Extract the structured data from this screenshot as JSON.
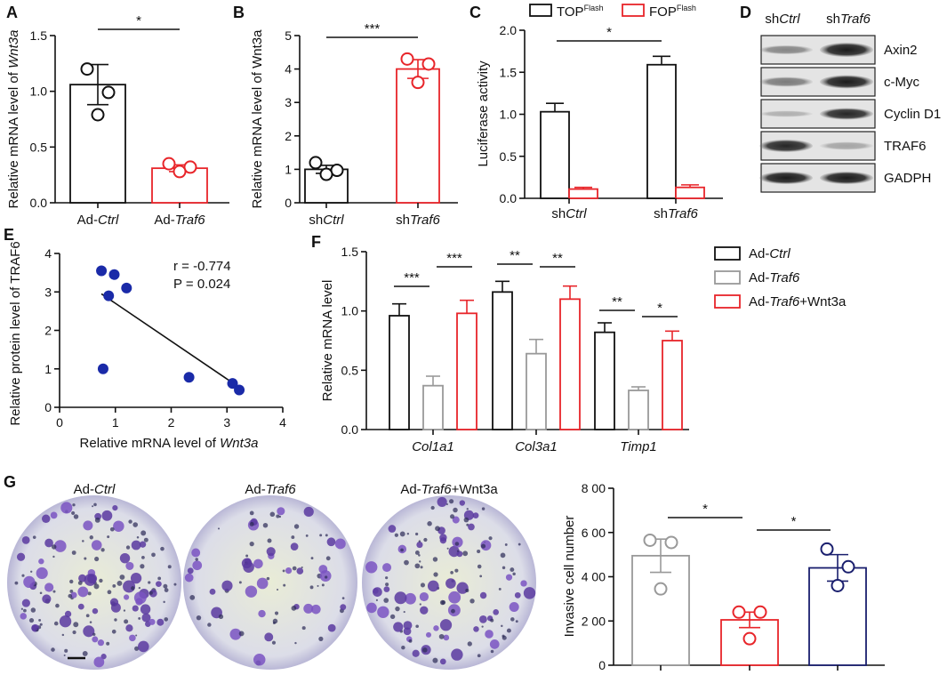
{
  "colors": {
    "black": "#111111",
    "red": "#e8252a",
    "gray": "#999999",
    "navy": "#1a1f6e",
    "scatter": "#1a2aa8"
  },
  "chart_data": [
    {
      "panel": "A",
      "type": "bar",
      "ylabel_parts": [
        "Relative mRNA level of ",
        "Wnt3a"
      ],
      "ylim": [
        0,
        1.5
      ],
      "yticks": [
        "0.0",
        "0.5",
        "1.0",
        "1.5"
      ],
      "categories": [
        [
          "Ad-",
          "Ctrl"
        ],
        [
          "Ad-",
          "Traf6"
        ]
      ],
      "values": [
        1.06,
        0.31
      ],
      "errors": [
        0.18,
        0.03
      ],
      "points": [
        [
          1.2,
          0.99,
          0.79
        ],
        [
          0.35,
          0.32,
          0.28
        ]
      ],
      "colors": [
        "#111111",
        "#e8252a"
      ],
      "significance": [
        {
          "from": 0,
          "to": 1,
          "label": "*"
        }
      ]
    },
    {
      "panel": "B",
      "type": "bar",
      "ylabel": "Relative mRNA level of Wnt3a",
      "ylim": [
        0,
        5
      ],
      "yticks": [
        "0",
        "1",
        "2",
        "3",
        "4",
        "5"
      ],
      "categories": [
        [
          "sh",
          "Ctrl"
        ],
        [
          "sh",
          "Traf6"
        ]
      ],
      "values": [
        1.0,
        4.0
      ],
      "errors": [
        0.12,
        0.28
      ],
      "points": [
        [
          1.2,
          0.97,
          0.85
        ],
        [
          4.3,
          4.15,
          3.6
        ]
      ],
      "colors": [
        "#111111",
        "#e8252a"
      ],
      "significance": [
        {
          "from": 0,
          "to": 1,
          "label": "***"
        }
      ]
    },
    {
      "panel": "C",
      "type": "bar",
      "ylabel": "Luciferase activity",
      "ylim": [
        0,
        2.0
      ],
      "yticks": [
        "0.0",
        "0.5",
        "1.0",
        "1.5",
        "2.0"
      ],
      "categories": [
        [
          "sh",
          "Ctrl"
        ],
        [
          "sh",
          "Traf6"
        ]
      ],
      "series": [
        {
          "name": "TOP",
          "sup": "Flash",
          "values": [
            1.03,
            1.59
          ],
          "errors": [
            0.1,
            0.1
          ],
          "color": "#111111"
        },
        {
          "name": "FOP",
          "sup": "Flash",
          "values": [
            0.11,
            0.13
          ],
          "errors": [
            0.02,
            0.03
          ],
          "color": "#e8252a"
        }
      ],
      "significance": [
        {
          "label": "*"
        }
      ]
    },
    {
      "panel": "E",
      "type": "scatter",
      "xlabel_parts": [
        "Relative mRNA level of ",
        "Wnt3a"
      ],
      "ylabel": "Relative protein level of TRAF6",
      "xlim": [
        0,
        4
      ],
      "ylim": [
        0,
        4
      ],
      "xticks": [
        "0",
        "1",
        "2",
        "3",
        "4"
      ],
      "yticks": [
        "0",
        "1",
        "2",
        "3",
        "4"
      ],
      "points": [
        [
          0.75,
          3.55
        ],
        [
          0.98,
          3.45
        ],
        [
          1.2,
          3.1
        ],
        [
          0.88,
          2.9
        ],
        [
          0.78,
          1.0
        ],
        [
          2.32,
          0.78
        ],
        [
          3.1,
          0.62
        ],
        [
          3.22,
          0.45
        ]
      ],
      "fit": [
        [
          0.75,
          2.95
        ],
        [
          3.22,
          0.52
        ]
      ],
      "annotations": [
        "r = -0.774",
        "P = 0.024"
      ]
    },
    {
      "panel": "F",
      "type": "bar",
      "ylabel": "Relative mRNA level",
      "ylim": [
        0,
        1.5
      ],
      "yticks": [
        "0.0",
        "0.5",
        "1.0",
        "1.5"
      ],
      "categories": [
        "Col1a1",
        "Col3a1",
        "Timp1"
      ],
      "series": [
        {
          "name_parts": [
            "Ad-",
            "Ctrl",
            ""
          ],
          "values": [
            0.96,
            1.16,
            0.82
          ],
          "errors": [
            0.1,
            0.09,
            0.08
          ],
          "color": "#111111"
        },
        {
          "name_parts": [
            "Ad-",
            "Traf6",
            ""
          ],
          "values": [
            0.37,
            0.64,
            0.33
          ],
          "errors": [
            0.08,
            0.12,
            0.03
          ],
          "color": "#999999"
        },
        {
          "name_parts": [
            "Ad-",
            "Traf6",
            "+Wnt3a"
          ],
          "values": [
            0.98,
            1.1,
            0.75
          ],
          "errors": [
            0.11,
            0.11,
            0.08
          ],
          "color": "#e8252a"
        }
      ],
      "significance": [
        {
          "group": 0,
          "pair": "low",
          "label": "***"
        },
        {
          "group": 0,
          "pair": "high",
          "label": "***"
        },
        {
          "group": 1,
          "pair": "low",
          "label": "**"
        },
        {
          "group": 1,
          "pair": "high",
          "label": "**"
        },
        {
          "group": 2,
          "pair": "low",
          "label": "**"
        },
        {
          "group": 2,
          "pair": "high",
          "label": "*"
        }
      ]
    },
    {
      "panel": "G",
      "type": "bar",
      "ylabel": "Invasive cell number",
      "ylim": [
        0,
        800
      ],
      "yticks": [
        "0",
        "2 00",
        "4 00",
        "6 00",
        "8 00"
      ],
      "categories": [
        "",
        "",
        ""
      ],
      "values": [
        495,
        205,
        440
      ],
      "errors": [
        75,
        35,
        60
      ],
      "points": [
        [
          565,
          555,
          345
        ],
        [
          240,
          240,
          120
        ],
        [
          525,
          445,
          360
        ]
      ],
      "colors": [
        "#999999",
        "#e8252a",
        "#1a1f6e"
      ],
      "significance": [
        {
          "from": 0,
          "to": 1,
          "label": "*"
        },
        {
          "from": 1,
          "to": 2,
          "label": "*"
        }
      ]
    }
  ],
  "panels": {
    "A": "A",
    "B": "B",
    "C": "C",
    "D": "D",
    "E": "E",
    "F": "F",
    "G": "G"
  },
  "western_blot": {
    "lanes": [
      [
        "sh",
        "Ctrl"
      ],
      [
        "sh",
        "Traf6"
      ]
    ],
    "proteins": [
      "Axin2",
      "c-Myc",
      "Cyclin D1",
      "TRAF6",
      "GADPH"
    ]
  },
  "micrographs": [
    [
      "Ad-",
      "Ctrl",
      ""
    ],
    [
      "Ad-",
      "Traf6",
      ""
    ],
    [
      "Ad-",
      "Traf6",
      "+Wnt3a"
    ]
  ]
}
